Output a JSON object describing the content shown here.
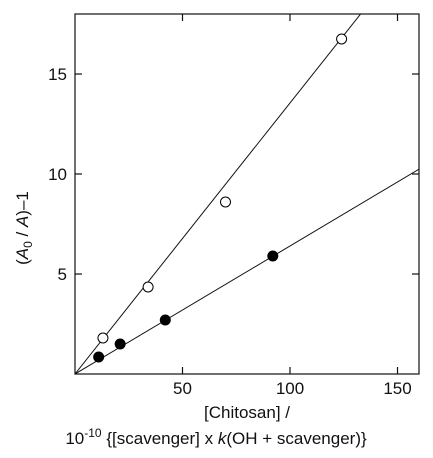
{
  "chart_data": {
    "type": "scatter",
    "title": "",
    "ylabel_parts": [
      "(",
      "A",
      "0",
      " / ",
      "A",
      ")–1"
    ],
    "xlabel_line1": "[Chitosan] /",
    "xlabel_line2_parts": [
      "10",
      "-10",
      " {[scavenger] x ",
      "k",
      "(OH + scavenger)}"
    ],
    "xlim": [
      0,
      160
    ],
    "ylim": [
      0,
      18
    ],
    "xticks": [
      50,
      100,
      150
    ],
    "yticks": [
      5,
      10,
      15
    ],
    "xticklabels": [
      "50",
      "100",
      "150"
    ],
    "yticklabels": [
      "5",
      "10",
      "15"
    ],
    "grid": false,
    "legend": "none",
    "series": [
      {
        "marker": "open-circle",
        "points": [
          [
            13,
            1.8
          ],
          [
            34,
            4.35
          ],
          [
            70,
            8.6
          ],
          [
            124,
            16.75
          ]
        ],
        "fit": {
          "slope": 0.1355,
          "intercept": 0
        }
      },
      {
        "marker": "filled-circle",
        "points": [
          [
            11,
            0.85
          ],
          [
            21,
            1.5
          ],
          [
            42,
            2.7
          ],
          [
            92,
            5.9
          ]
        ],
        "fit": {
          "slope": 0.064,
          "intercept": 0
        }
      }
    ]
  }
}
